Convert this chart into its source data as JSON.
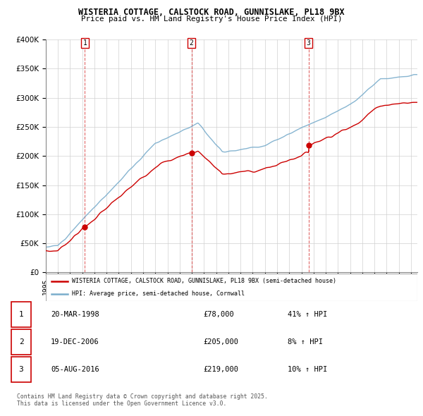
{
  "title": "WISTERIA COTTAGE, CALSTOCK ROAD, GUNNISLAKE, PL18 9BX",
  "subtitle": "Price paid vs. HM Land Registry's House Price Index (HPI)",
  "sale_times": [
    1998.22,
    2006.97,
    2016.59
  ],
  "sale_prices": [
    78000,
    205000,
    219000
  ],
  "sale_labels": [
    "1",
    "2",
    "3"
  ],
  "legend_line1": "WISTERIA COTTAGE, CALSTOCK ROAD, GUNNISLAKE, PL18 9BX (semi-detached house)",
  "legend_line2": "HPI: Average price, semi-detached house, Cornwall",
  "table_data": [
    [
      "1",
      "20-MAR-1998",
      "£78,000",
      "41% ↑ HPI"
    ],
    [
      "2",
      "19-DEC-2006",
      "£205,000",
      "8% ↑ HPI"
    ],
    [
      "3",
      "05-AUG-2016",
      "£219,000",
      "10% ↑ HPI"
    ]
  ],
  "footnote": "Contains HM Land Registry data © Crown copyright and database right 2025.\nThis data is licensed under the Open Government Licence v3.0.",
  "red_color": "#cc0000",
  "blue_color": "#7aadcc",
  "yticks": [
    0,
    50000,
    100000,
    150000,
    200000,
    250000,
    300000,
    350000,
    400000
  ],
  "ymax": 400000
}
